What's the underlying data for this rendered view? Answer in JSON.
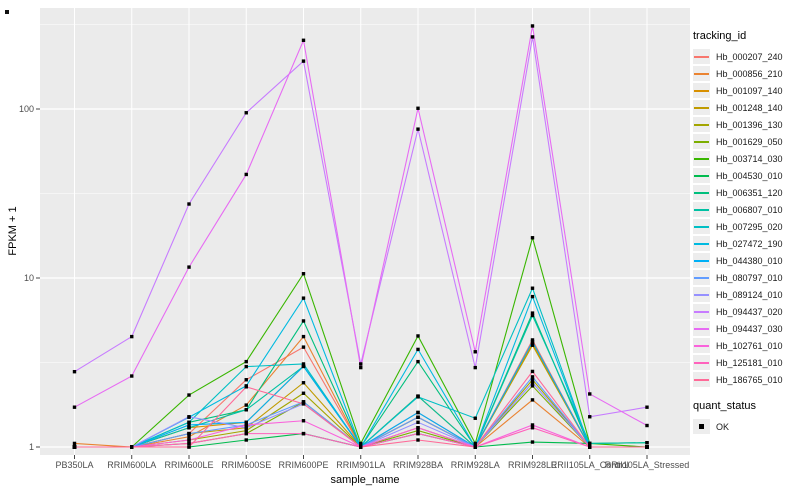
{
  "chart_data": {
    "type": "line",
    "title": "",
    "xlabel": "sample_name",
    "ylabel": "FPKM + 1",
    "y_scale": "log10",
    "ylim": [
      1,
      400
    ],
    "y_ticks": [
      1,
      10,
      100
    ],
    "grid": true,
    "panel_bg": "#EBEBEB",
    "grid_color": "#FFFFFF",
    "legend_position": "right",
    "legend_title": "tracking_id",
    "point_legend": {
      "title": "quant_status",
      "label": "OK",
      "color": "#000000"
    },
    "categories": [
      "PB350LA",
      "RRIM600LA",
      "RRIM600LE",
      "RRIM600SE",
      "RRIM600PE",
      "RRIM901LA",
      "RRIM928BA",
      "RRIM928LA",
      "RRIM928LE",
      "RRII105LA_Control",
      "RRII105LA_Stressed"
    ],
    "series": [
      {
        "name": "Hb_000207_240",
        "color": "#F8766D",
        "values": [
          1.0,
          1.0,
          1.2,
          2.5,
          3.9,
          1.0,
          1.6,
          1.0,
          4.3,
          1.0,
          1.0
        ]
      },
      {
        "name": "Hb_000856_210",
        "color": "#EA8331",
        "values": [
          1.05,
          1.0,
          1.15,
          1.77,
          4.5,
          1.0,
          1.5,
          1.0,
          1.9,
          1.0,
          1.0
        ]
      },
      {
        "name": "Hb_001097_140",
        "color": "#D89000",
        "values": [
          1.0,
          1.0,
          1.3,
          1.4,
          3.0,
          1.0,
          2.0,
          1.0,
          4.1,
          1.0,
          1.0
        ]
      },
      {
        "name": "Hb_001248_140",
        "color": "#C09B00",
        "values": [
          1.0,
          1.0,
          1.2,
          1.3,
          2.4,
          1.0,
          1.5,
          1.0,
          4.0,
          1.0,
          1.0
        ]
      },
      {
        "name": "Hb_001396_130",
        "color": "#A3A500",
        "values": [
          1.0,
          1.0,
          1.1,
          1.25,
          2.08,
          1.0,
          1.3,
          1.0,
          2.5,
          1.0,
          1.0
        ]
      },
      {
        "name": "Hb_001629_050",
        "color": "#7CAE00",
        "values": [
          1.0,
          1.0,
          1.05,
          1.2,
          1.85,
          1.0,
          1.25,
          1.0,
          2.3,
          1.0,
          1.0
        ]
      },
      {
        "name": "Hb_003714_030",
        "color": "#39B600",
        "values": [
          1.0,
          1.0,
          2.03,
          3.2,
          10.6,
          1.05,
          4.54,
          1.05,
          17.3,
          1.05,
          1.0
        ]
      },
      {
        "name": "Hb_004530_010",
        "color": "#00BB4E",
        "values": [
          1.0,
          1.0,
          1.0,
          1.1,
          1.2,
          1.0,
          1.2,
          1.0,
          1.07,
          1.05,
          1.06
        ]
      },
      {
        "name": "Hb_006351_120",
        "color": "#00BF7D",
        "values": [
          1.0,
          1.0,
          1.4,
          1.66,
          5.57,
          1.0,
          3.2,
          1.0,
          6.2,
          1.0,
          1.0
        ]
      },
      {
        "name": "Hb_006807_010",
        "color": "#00C1A3",
        "values": [
          1.0,
          1.0,
          1.3,
          1.66,
          3.0,
          1.0,
          2.0,
          1.0,
          6.0,
          1.05,
          1.06
        ]
      },
      {
        "name": "Hb_007295_020",
        "color": "#00BFC4",
        "values": [
          1.0,
          1.0,
          1.4,
          2.99,
          3.1,
          1.0,
          1.98,
          1.48,
          8.7,
          1.0,
          1.0
        ]
      },
      {
        "name": "Hb_027472_190",
        "color": "#00BAE0",
        "values": [
          1.0,
          1.0,
          1.5,
          2.3,
          7.6,
          1.0,
          3.78,
          1.0,
          7.76,
          1.0,
          1.0
        ]
      },
      {
        "name": "Hb_044380_010",
        "color": "#00B0F6",
        "values": [
          1.0,
          1.0,
          1.35,
          1.4,
          3.0,
          1.0,
          1.6,
          1.0,
          4.2,
          1.0,
          1.0
        ]
      },
      {
        "name": "Hb_080797_010",
        "color": "#619CFF",
        "values": [
          1.0,
          1.0,
          1.2,
          1.35,
          1.85,
          1.0,
          1.5,
          1.0,
          2.6,
          1.0,
          1.0
        ]
      },
      {
        "name": "Hb_089124_010",
        "color": "#9590FF",
        "values": [
          1.0,
          1.0,
          1.51,
          1.3,
          1.8,
          1.0,
          1.4,
          1.0,
          2.4,
          1.0,
          1.0
        ]
      },
      {
        "name": "Hb_094437_020",
        "color": "#C77CFF",
        "values": [
          2.79,
          4.5,
          27.4,
          95.0,
          192.0,
          3.1,
          76.0,
          2.95,
          267.0,
          1.51,
          1.72
        ]
      },
      {
        "name": "Hb_094437_030",
        "color": "#E76BF3",
        "values": [
          1.72,
          2.63,
          11.6,
          41.0,
          255.0,
          2.95,
          101.0,
          3.66,
          310.0,
          2.06,
          1.34
        ]
      },
      {
        "name": "Hb_102761_010",
        "color": "#FA62DB",
        "values": [
          1.0,
          1.0,
          1.1,
          1.35,
          1.43,
          1.0,
          1.3,
          1.0,
          1.35,
          1.0,
          1.0
        ]
      },
      {
        "name": "Hb_125181_010",
        "color": "#FF62BC",
        "values": [
          1.0,
          1.0,
          1.05,
          1.2,
          1.2,
          1.0,
          1.2,
          1.0,
          1.3,
          1.0,
          1.0
        ]
      },
      {
        "name": "Hb_186765_010",
        "color": "#FF6A98",
        "values": [
          1.0,
          1.0,
          1.0,
          2.27,
          1.8,
          1.0,
          1.1,
          1.0,
          2.8,
          1.0,
          1.0
        ]
      }
    ]
  }
}
